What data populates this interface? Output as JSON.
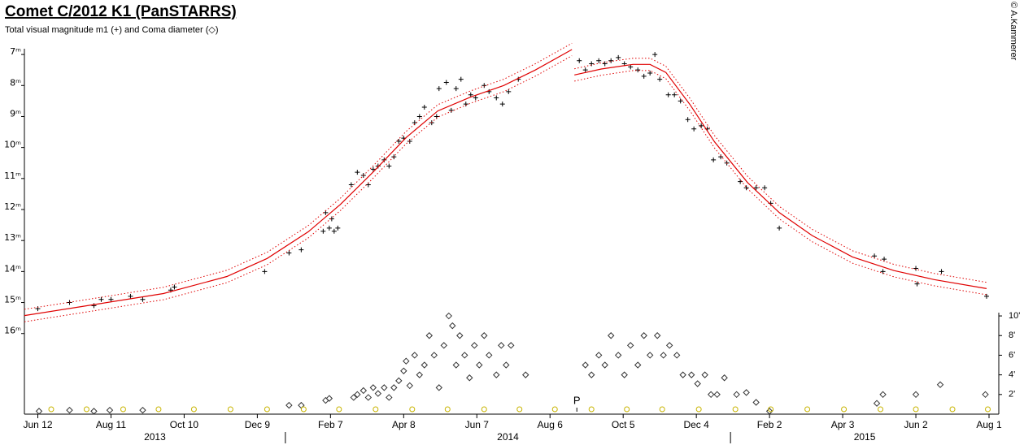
{
  "chart_data": {
    "type": "scatter",
    "title": "Comet C/2012 K1 (PanSTARRS)",
    "subtitle": "Total visual magnitude m1 (+) and Coma diameter (◇)",
    "credit": "© A.Kammerer",
    "xlim": [
      "2013-06-01",
      "2015-08-09"
    ],
    "xticks": [
      {
        "value": "2013-06-12",
        "label": "Jun 12"
      },
      {
        "value": "2013-08-11",
        "label": "Aug 11"
      },
      {
        "value": "2013-10-10",
        "label": "Oct 10"
      },
      {
        "value": "2013-12-09",
        "label": "Dec 9"
      },
      {
        "value": "2014-02-07",
        "label": "Feb 7"
      },
      {
        "value": "2014-04-08",
        "label": "Apr 8"
      },
      {
        "value": "2014-06-07",
        "label": "Jun 7"
      },
      {
        "value": "2014-08-06",
        "label": "Aug 6"
      },
      {
        "value": "2014-10-05",
        "label": "Oct 5"
      },
      {
        "value": "2014-12-04",
        "label": "Dec 4"
      },
      {
        "value": "2015-02-02",
        "label": "Feb 2"
      },
      {
        "value": "2015-04-03",
        "label": "Apr 3"
      },
      {
        "value": "2015-06-02",
        "label": "Jun 2"
      },
      {
        "value": "2015-08-01",
        "label": "Aug 1"
      }
    ],
    "year_labels": [
      "2013",
      "2014",
      "2015"
    ],
    "year_boundaries": [
      "2014-01-01",
      "2015-01-01"
    ],
    "ylim": [
      18.6,
      6.5
    ],
    "yticks": [
      {
        "value": 7,
        "label": "7ᵐ"
      },
      {
        "value": 8,
        "label": "8ᵐ"
      },
      {
        "value": 9,
        "label": "9ᵐ"
      },
      {
        "value": 10,
        "label": "10ᵐ"
      },
      {
        "value": 11,
        "label": "11ᵐ"
      },
      {
        "value": 12,
        "label": "12ᵐ"
      },
      {
        "value": 13,
        "label": "13ᵐ"
      },
      {
        "value": 14,
        "label": "14ᵐ"
      },
      {
        "value": 15,
        "label": "15ᵐ"
      },
      {
        "value": 16,
        "label": "16ᵐ"
      }
    ],
    "y2lim": [
      0,
      38.2
    ],
    "y2ticks": [
      {
        "value": 2,
        "label": "2'"
      },
      {
        "value": 4,
        "label": "4'"
      },
      {
        "value": 6,
        "label": "6'"
      },
      {
        "value": 8,
        "label": "8'"
      },
      {
        "value": 10,
        "label": "10'"
      }
    ],
    "series": [
      {
        "marker": "plus",
        "color": "#000000",
        "x": [
          "2013-06-12",
          "2013-07-08",
          "2013-07-28",
          "2013-08-03",
          "2013-08-11",
          "2013-08-27",
          "2013-09-06",
          "2013-09-29",
          "2013-10-02",
          "2013-12-15",
          "2014-01-04",
          "2014-01-14",
          "2014-02-01",
          "2014-02-03",
          "2014-02-06",
          "2014-02-08",
          "2014-02-10",
          "2014-02-13",
          "2014-02-24",
          "2014-03-01",
          "2014-03-06",
          "2014-03-10",
          "2014-03-14",
          "2014-03-18",
          "2014-03-23",
          "2014-03-27",
          "2014-03-31",
          "2014-04-04",
          "2014-04-08",
          "2014-04-13",
          "2014-04-17",
          "2014-04-21",
          "2014-04-25",
          "2014-05-01",
          "2014-05-05",
          "2014-05-07",
          "2014-05-13",
          "2014-05-17",
          "2014-05-21",
          "2014-05-25",
          "2014-05-29",
          "2014-06-02",
          "2014-06-06",
          "2014-06-13",
          "2014-06-17",
          "2014-06-23",
          "2014-06-28",
          "2014-07-03",
          "2014-07-11",
          "2014-08-30",
          "2014-09-04",
          "2014-09-09",
          "2014-09-15",
          "2014-09-20",
          "2014-09-25",
          "2014-10-01",
          "2014-10-06",
          "2014-10-11",
          "2014-10-17",
          "2014-10-22",
          "2014-10-27",
          "2014-10-31",
          "2014-11-04",
          "2014-11-11",
          "2014-11-16",
          "2014-11-21",
          "2014-11-27",
          "2014-12-02",
          "2014-12-08",
          "2014-12-13",
          "2014-12-18",
          "2014-12-24",
          "2014-12-29",
          "2015-01-09",
          "2015-01-14",
          "2015-01-22",
          "2015-01-29",
          "2015-02-03",
          "2015-02-10",
          "2015-04-29",
          "2015-05-06",
          "2015-05-07",
          "2015-06-02",
          "2015-06-03",
          "2015-06-23",
          "2015-07-30"
        ],
        "values": [
          15.2,
          15.0,
          15.1,
          14.9,
          14.9,
          14.8,
          14.9,
          14.6,
          14.5,
          14.0,
          13.4,
          13.3,
          12.7,
          12.1,
          12.6,
          12.3,
          12.7,
          12.6,
          11.2,
          10.8,
          10.9,
          11.2,
          10.7,
          10.6,
          10.4,
          10.6,
          10.3,
          9.8,
          9.7,
          9.8,
          9.2,
          9.0,
          8.7,
          9.2,
          9.0,
          8.1,
          7.9,
          8.8,
          8.1,
          7.8,
          8.6,
          8.3,
          8.4,
          8.0,
          8.2,
          8.4,
          8.6,
          8.2,
          7.8,
          7.2,
          7.5,
          7.3,
          7.2,
          7.3,
          7.2,
          7.1,
          7.3,
          7.4,
          7.5,
          7.7,
          7.6,
          7.0,
          7.8,
          8.3,
          8.3,
          8.5,
          9.1,
          9.4,
          9.3,
          9.4,
          10.4,
          10.3,
          10.5,
          11.1,
          11.3,
          11.3,
          11.3,
          11.8,
          12.6,
          13.5,
          14.0,
          13.6,
          13.9,
          14.4,
          14.0,
          14.8
        ]
      },
      {
        "marker": "diamond",
        "axis": "y2",
        "color": "#333333",
        "x": [
          "2013-06-13",
          "2013-07-08",
          "2013-07-28",
          "2013-08-10",
          "2013-09-06",
          "2014-01-04",
          "2014-01-14",
          "2014-02-03",
          "2014-02-06",
          "2014-02-26",
          "2014-03-01",
          "2014-03-06",
          "2014-03-10",
          "2014-03-14",
          "2014-03-18",
          "2014-03-23",
          "2014-03-27",
          "2014-03-31",
          "2014-04-04",
          "2014-04-08",
          "2014-04-10",
          "2014-04-13",
          "2014-04-17",
          "2014-04-21",
          "2014-04-25",
          "2014-04-29",
          "2014-05-03",
          "2014-05-07",
          "2014-05-11",
          "2014-05-15",
          "2014-05-18",
          "2014-05-21",
          "2014-05-24",
          "2014-05-28",
          "2014-06-01",
          "2014-06-05",
          "2014-06-09",
          "2014-06-13",
          "2014-06-17",
          "2014-06-23",
          "2014-06-27",
          "2014-07-01",
          "2014-07-05",
          "2014-07-17",
          "2014-09-04",
          "2014-09-09",
          "2014-09-15",
          "2014-09-20",
          "2014-09-25",
          "2014-10-01",
          "2014-10-06",
          "2014-10-11",
          "2014-10-17",
          "2014-10-22",
          "2014-10-27",
          "2014-11-02",
          "2014-11-07",
          "2014-11-12",
          "2014-11-18",
          "2014-11-23",
          "2014-11-30",
          "2014-12-05",
          "2014-12-11",
          "2014-12-16",
          "2014-12-21",
          "2014-12-27",
          "2015-01-06",
          "2015-01-14",
          "2015-01-22",
          "2015-02-02",
          "2015-05-01",
          "2015-05-06",
          "2015-06-02",
          "2015-06-22",
          "2015-07-29"
        ],
        "values": [
          0.3,
          0.4,
          0.3,
          0.4,
          0.4,
          0.9,
          0.9,
          1.4,
          1.6,
          1.7,
          2.0,
          2.4,
          1.7,
          2.7,
          2.1,
          2.7,
          1.7,
          2.7,
          3.4,
          4.4,
          5.4,
          2.9,
          6.0,
          4.0,
          5.0,
          8.0,
          6.0,
          2.7,
          7.0,
          10.0,
          9.0,
          5.0,
          8.0,
          6.0,
          3.7,
          7.0,
          5.0,
          8.0,
          6.0,
          4.0,
          7.0,
          5.0,
          7.0,
          4.0,
          5.0,
          4.0,
          6.0,
          5.0,
          8.0,
          6.0,
          4.0,
          7.0,
          5.0,
          8.0,
          6.0,
          8.0,
          6.0,
          7.0,
          6.0,
          4.0,
          4.0,
          3.1,
          4.0,
          2.0,
          2.0,
          3.7,
          2.0,
          2.2,
          1.2,
          0.3,
          1.1,
          2.0,
          2.0,
          3.0,
          2.0
        ]
      },
      {
        "marker": "circle",
        "color": "#c8b400",
        "x": [
          "2013-06-23",
          "2013-07-22",
          "2013-08-21",
          "2013-09-19",
          "2013-10-18",
          "2013-11-17",
          "2013-12-17",
          "2014-01-16",
          "2014-02-14",
          "2014-03-16",
          "2014-04-15",
          "2014-05-14",
          "2014-06-13",
          "2014-07-12",
          "2014-08-10",
          "2014-09-09",
          "2014-10-08",
          "2014-11-06",
          "2014-12-06",
          "2015-01-05",
          "2015-02-03",
          "2015-03-05",
          "2015-04-04",
          "2015-05-04",
          "2015-06-02",
          "2015-07-02",
          "2015-07-31"
        ]
      },
      {
        "marker": "line",
        "color": "#e00000",
        "error": 0.2,
        "x": [
          "2013-06-01",
          "2013-07-18",
          "2013-09-23",
          "2013-11-14",
          "2013-12-17",
          "2014-01-20",
          "2014-02-15",
          "2014-03-14",
          "2014-04-10",
          "2014-05-06",
          "2014-06-02",
          "2014-06-29",
          "2014-07-25",
          "2014-08-24",
          null,
          "2014-08-26",
          "2014-09-17",
          "2014-10-13",
          "2014-10-27",
          "2014-11-09",
          "2014-11-29",
          "2014-12-19",
          "2015-01-15",
          "2015-02-10",
          "2015-03-09",
          "2015-04-11",
          "2015-05-15",
          "2015-06-17",
          "2015-07-30"
        ],
        "values": [
          15.42,
          15.13,
          14.71,
          14.16,
          13.58,
          12.71,
          11.84,
          10.79,
          9.68,
          8.82,
          8.37,
          8.0,
          7.5,
          6.84,
          null,
          7.66,
          7.47,
          7.32,
          7.32,
          7.58,
          8.63,
          9.82,
          11.13,
          12.1,
          12.84,
          13.53,
          13.97,
          14.26,
          14.55
        ]
      }
    ],
    "annotations": [
      {
        "text": "P",
        "x": "2014-08-28"
      }
    ]
  }
}
